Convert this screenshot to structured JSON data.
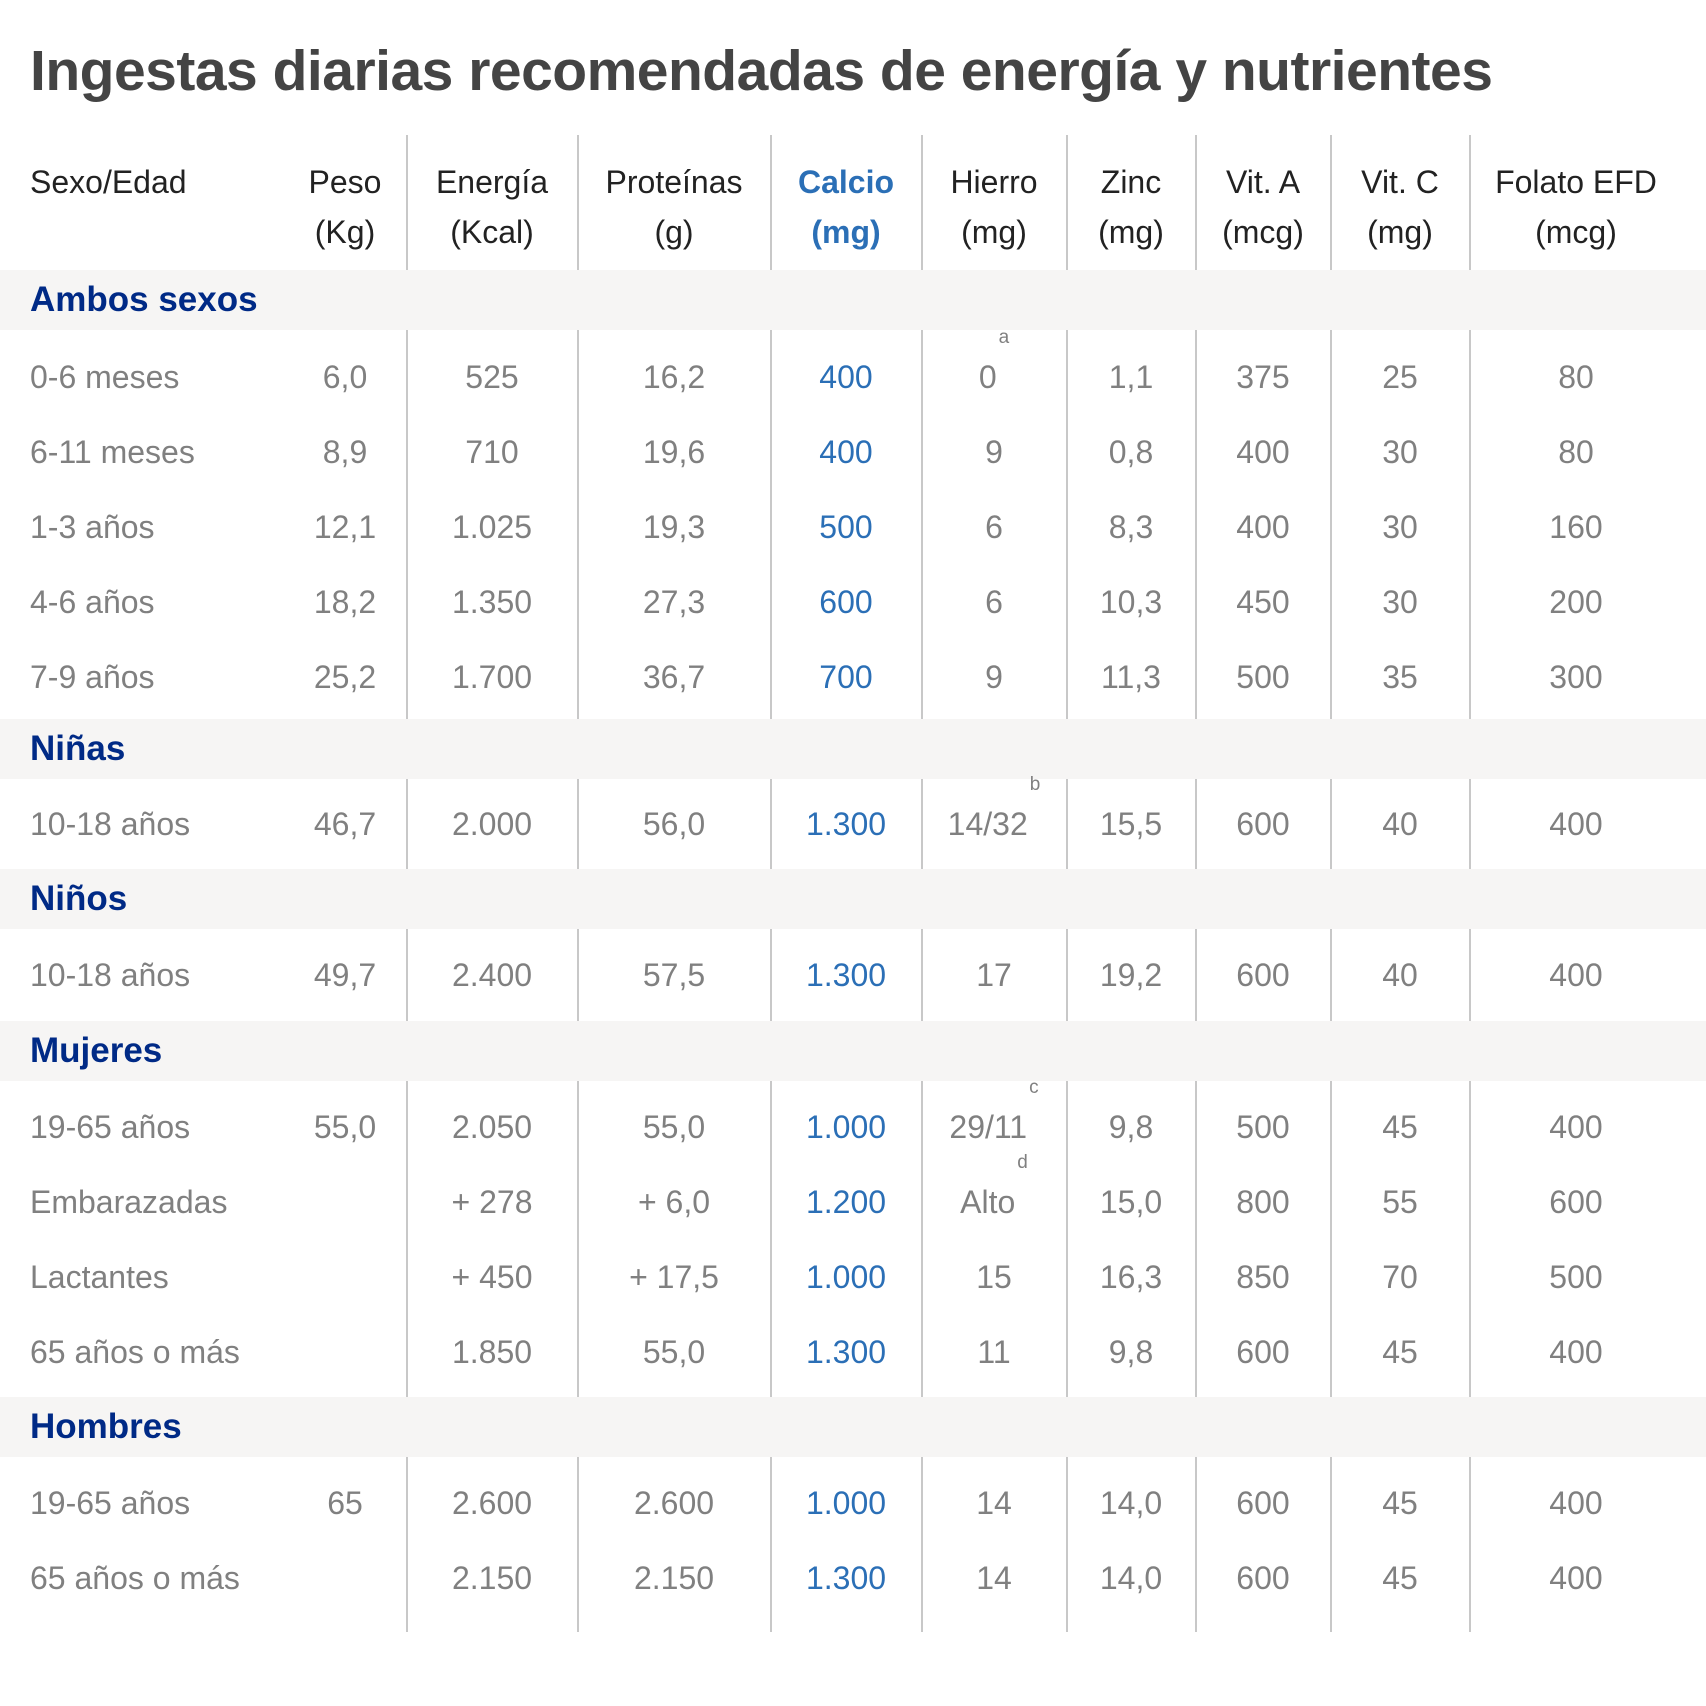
{
  "title": "Ingestas diarias recomendadas de energía y nutrientes",
  "colors": {
    "title": "#444444",
    "section": "#002a86",
    "calcio": "#2b6fb6",
    "body": "#808080",
    "band": "#f6f5f4",
    "divider": "#c8c8c8"
  },
  "columns": [
    {
      "line1": "Sexo/Edad",
      "line2": ""
    },
    {
      "line1": "Peso",
      "line2": "(Kg)"
    },
    {
      "line1": "Energía",
      "line2": "(Kcal)"
    },
    {
      "line1": "Proteínas",
      "line2": "(g)"
    },
    {
      "line1": "Calcio",
      "line2": "(mg)"
    },
    {
      "line1": "Hierro",
      "line2": "(mg)"
    },
    {
      "line1": "Zinc",
      "line2": "(mg)"
    },
    {
      "line1": "Vit. A",
      "line2": "(mcg)"
    },
    {
      "line1": "Vit. C",
      "line2": "(mg)"
    },
    {
      "line1": "Folato EFD",
      "line2": "(mcg)"
    }
  ],
  "sections": [
    {
      "label": "Ambos sexos",
      "rows": [
        {
          "cells": [
            "0-6 meses",
            "6,0",
            "525",
            "16,2",
            "400",
            "0",
            "1,1",
            "375",
            "25",
            "80"
          ],
          "sup": "a"
        },
        {
          "cells": [
            "6-11 meses",
            "8,9",
            "710",
            "19,6",
            "400",
            "9",
            "0,8",
            "400",
            "30",
            "80"
          ],
          "sup": ""
        },
        {
          "cells": [
            "1-3 años",
            "12,1",
            "1.025",
            "19,3",
            "500",
            "6",
            "8,3",
            "400",
            "30",
            "160"
          ],
          "sup": ""
        },
        {
          "cells": [
            "4-6 años",
            "18,2",
            "1.350",
            "27,3",
            "600",
            "6",
            "10,3",
            "450",
            "30",
            "200"
          ],
          "sup": ""
        },
        {
          "cells": [
            "7-9 años",
            "25,2",
            "1.700",
            "36,7",
            "700",
            "9",
            "11,3",
            "500",
            "35",
            "300"
          ],
          "sup": ""
        }
      ]
    },
    {
      "label": "Niñas",
      "rows": [
        {
          "cells": [
            "10-18 años",
            "46,7",
            "2.000",
            "56,0",
            "1.300",
            "14/32",
            "15,5",
            "600",
            "40",
            "400"
          ],
          "sup": "b"
        }
      ]
    },
    {
      "label": "Niños",
      "rows": [
        {
          "cells": [
            "10-18 años",
            "49,7",
            "2.400",
            "57,5",
            "1.300",
            "17",
            "19,2",
            "600",
            "40",
            "400"
          ],
          "sup": ""
        }
      ]
    },
    {
      "label": "Mujeres",
      "rows": [
        {
          "cells": [
            "19-65 años",
            "55,0",
            "2.050",
            "55,0",
            "1.000",
            "29/11",
            "9,8",
            "500",
            "45",
            "400"
          ],
          "sup": "c"
        },
        {
          "cells": [
            "Embarazadas",
            "",
            "+ 278",
            "+ 6,0",
            "1.200",
            "Alto",
            "15,0",
            "800",
            "55",
            "600"
          ],
          "sup": "d"
        },
        {
          "cells": [
            "Lactantes",
            "",
            "+ 450",
            "+ 17,5",
            "1.000",
            "15",
            "16,3",
            "850",
            "70",
            "500"
          ],
          "sup": ""
        },
        {
          "cells": [
            "65 años o más",
            "",
            "1.850",
            "55,0",
            "1.300",
            "11",
            "9,8",
            "600",
            "45",
            "400"
          ],
          "sup": ""
        }
      ]
    },
    {
      "label": "Hombres",
      "rows": [
        {
          "cells": [
            "19-65 años",
            "65",
            "2.600",
            "2.600",
            "1.000",
            "14",
            "14,0",
            "600",
            "45",
            "400"
          ],
          "sup": ""
        },
        {
          "cells": [
            "65 años o más",
            "",
            "2.150",
            "2.150",
            "1.300",
            "14",
            "14,0",
            "600",
            "45",
            "400"
          ],
          "sup": ""
        }
      ]
    }
  ]
}
